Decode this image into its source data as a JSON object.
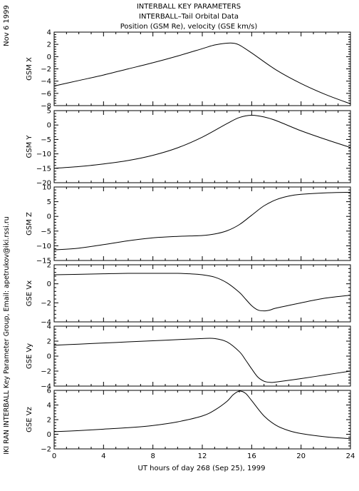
{
  "header": {
    "title_line1": "INTERBALL KEY PARAMETERS",
    "title_line2": "INTERBALL–Tail Orbital Data",
    "title_line3": "Position (GSM Re), velocity (GSE km/s)",
    "date_stamp": "Nov 6 1999",
    "side_credit": "IKI RAN INTERBALL Key Parameter Group, Email: apetrukov@iki.rssi.ru"
  },
  "chart_data": {
    "type": "line",
    "xlabel": "UT hours of day 268 (Sep 25), 1999",
    "xlim": [
      0,
      24
    ],
    "xticks": [
      0,
      4,
      8,
      12,
      16,
      20,
      24
    ],
    "panels": [
      {
        "ylabel": "GSM X",
        "ylim": [
          -8,
          4
        ],
        "yticks": [
          -8,
          -6,
          -4,
          -2,
          0,
          2,
          4
        ],
        "x": [
          0,
          2,
          4,
          6,
          8,
          10,
          12,
          13,
          14,
          14.5,
          15,
          16,
          18,
          20,
          22,
          24
        ],
        "y": [
          -4.8,
          -3.9,
          -3.0,
          -2.0,
          -1.0,
          0.1,
          1.3,
          1.9,
          2.2,
          2.2,
          1.9,
          0.6,
          -2.2,
          -4.4,
          -6.2,
          -7.7
        ]
      },
      {
        "ylabel": "GSM Y",
        "ylim": [
          -20,
          5
        ],
        "yticks": [
          -20,
          -15,
          -10,
          -5,
          0,
          5
        ],
        "x": [
          0,
          2,
          4,
          6,
          8,
          10,
          12,
          14,
          15,
          16,
          17,
          18,
          20,
          22,
          24
        ],
        "y": [
          -15.0,
          -14.4,
          -13.5,
          -12.3,
          -10.5,
          -7.9,
          -4.2,
          0.5,
          2.6,
          3.4,
          2.8,
          1.5,
          -2.0,
          -5.0,
          -7.8
        ]
      },
      {
        "ylabel": "GSM Z",
        "ylim": [
          -15,
          10
        ],
        "yticks": [
          -15,
          -10,
          -5,
          0,
          5,
          10
        ],
        "x": [
          0,
          2,
          4,
          6,
          8,
          10,
          12,
          13,
          14,
          15,
          16,
          17,
          18,
          19,
          20,
          22,
          24
        ],
        "y": [
          -11.4,
          -10.8,
          -9.6,
          -8.3,
          -7.3,
          -6.8,
          -6.5,
          -6.0,
          -4.9,
          -2.8,
          0.4,
          3.6,
          5.7,
          6.9,
          7.5,
          8.0,
          8.2
        ]
      },
      {
        "ylabel": "GSE Vx",
        "ylim": [
          -4,
          2
        ],
        "yticks": [
          -4,
          -2,
          0,
          2
        ],
        "x": [
          0,
          2,
          4,
          6,
          8,
          10,
          11,
          12,
          13,
          14,
          15,
          15.5,
          16,
          16.5,
          17,
          17.5,
          18,
          20,
          22,
          24
        ],
        "y": [
          0.95,
          1.0,
          1.05,
          1.1,
          1.1,
          1.1,
          1.05,
          0.95,
          0.7,
          0.1,
          -0.9,
          -1.6,
          -2.3,
          -2.75,
          -2.85,
          -2.75,
          -2.55,
          -2.0,
          -1.5,
          -1.2
        ]
      },
      {
        "ylabel": "GSE Vy",
        "ylim": [
          -4,
          4
        ],
        "yticks": [
          -4,
          -2,
          0,
          2,
          4
        ],
        "x": [
          0,
          2,
          4,
          6,
          8,
          10,
          12,
          13,
          14,
          15,
          15.5,
          16,
          16.5,
          17,
          17.5,
          18,
          20,
          22,
          24
        ],
        "y": [
          1.45,
          1.6,
          1.75,
          1.9,
          2.05,
          2.2,
          2.35,
          2.35,
          1.9,
          0.6,
          -0.5,
          -1.7,
          -2.8,
          -3.35,
          -3.5,
          -3.45,
          -3.0,
          -2.5,
          -2.0
        ]
      },
      {
        "ylabel": "GSE Vz",
        "ylim": [
          -2,
          6
        ],
        "yticks": [
          -2,
          0,
          2,
          4,
          6
        ],
        "x": [
          0,
          2,
          4,
          6,
          8,
          10,
          12,
          13,
          14,
          14.5,
          15,
          15.5,
          16,
          17,
          18,
          19,
          20,
          22,
          24
        ],
        "y": [
          0.35,
          0.5,
          0.7,
          0.9,
          1.2,
          1.7,
          2.5,
          3.3,
          4.5,
          5.4,
          5.9,
          5.6,
          4.6,
          2.5,
          1.2,
          0.5,
          0.1,
          -0.35,
          -0.6
        ]
      }
    ]
  }
}
